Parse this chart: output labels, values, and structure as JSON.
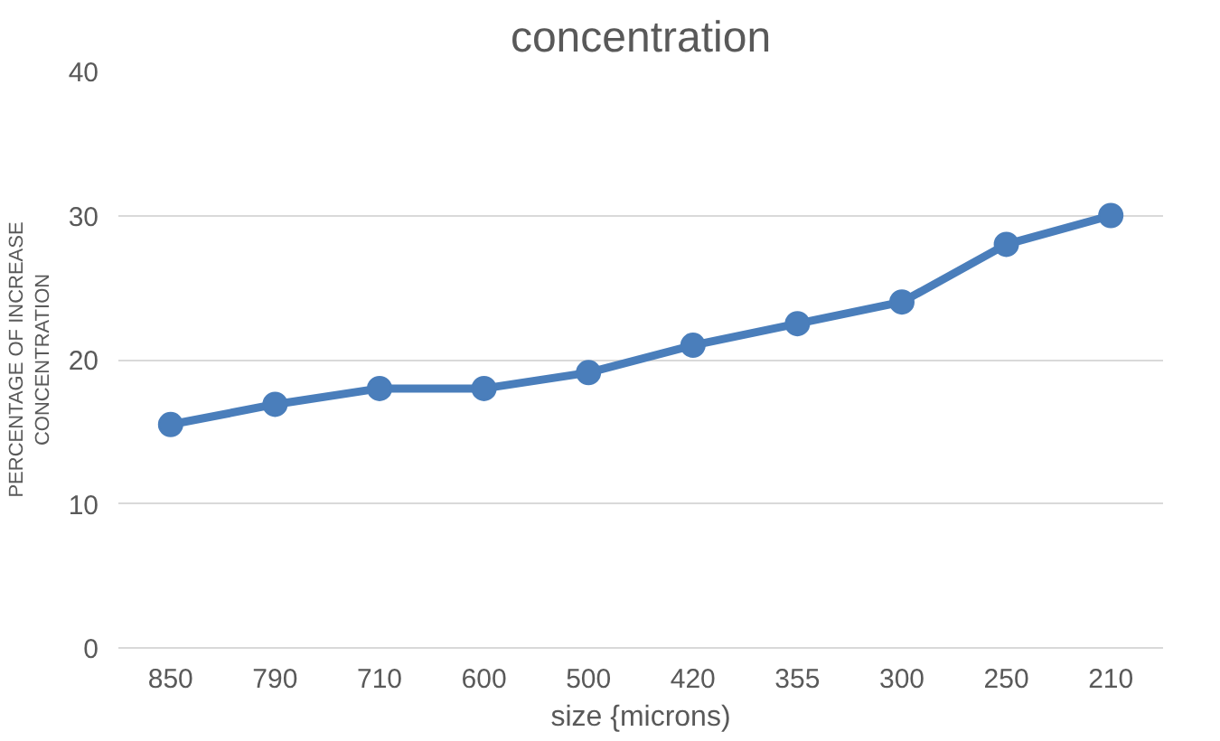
{
  "chart_data": {
    "type": "line",
    "title": "concentration",
    "xlabel": "size {microns)",
    "ylabel": "PERCENTAGE OF INCREASE\nCONCENTRATION",
    "categories": [
      "850",
      "790",
      "710",
      "600",
      "500",
      "420",
      "355",
      "300",
      "250",
      "210"
    ],
    "series": [
      {
        "color": "#4a7ebb",
        "values": [
          15.5,
          16.9,
          18,
          18,
          19.1,
          21,
          22.5,
          24,
          28,
          30
        ]
      }
    ],
    "ylim": [
      0,
      40
    ],
    "yticks": [
      0,
      10,
      20,
      30,
      40
    ],
    "grid": "y",
    "marker": "circle",
    "line_style": "solid"
  }
}
